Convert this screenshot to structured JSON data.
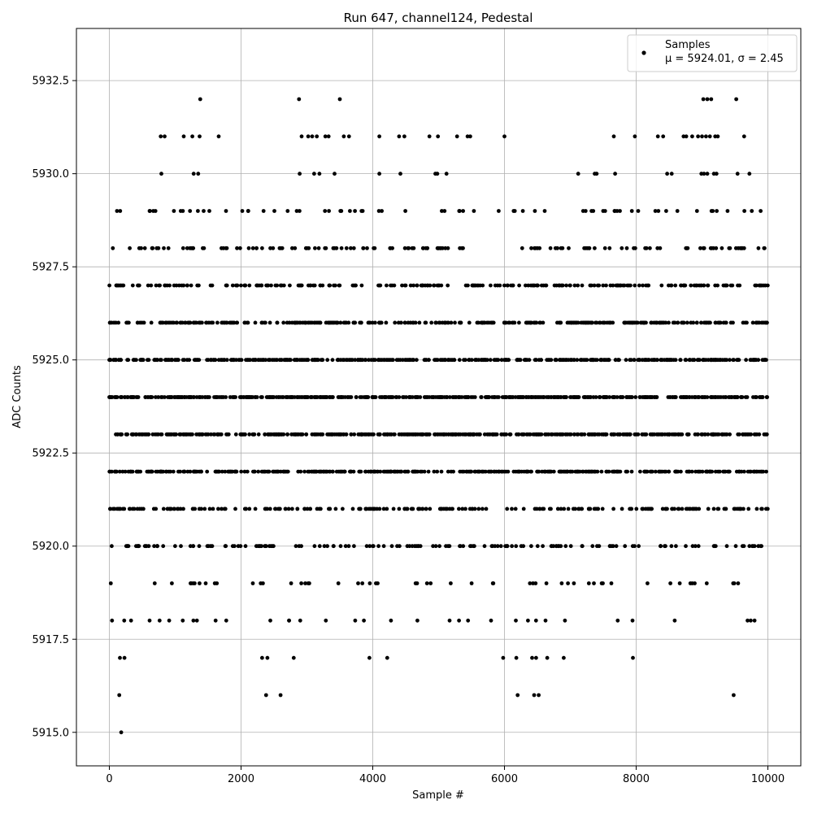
{
  "chart_data": {
    "type": "scatter",
    "title": "Run 647, channel124, Pedestal",
    "xlabel": "Sample #",
    "ylabel": "ADC Counts",
    "xlim": [
      -500,
      10500
    ],
    "ylim": [
      5914.1,
      5933.9
    ],
    "xticks": [
      0,
      2000,
      4000,
      6000,
      8000,
      10000
    ],
    "xtick_labels": [
      "0",
      "2000",
      "4000",
      "6000",
      "8000",
      "10000"
    ],
    "yticks": [
      5915.0,
      5917.5,
      5920.0,
      5922.5,
      5925.0,
      5927.5,
      5930.0,
      5932.5
    ],
    "ytick_labels": [
      "5915.0",
      "5917.5",
      "5920.0",
      "5922.5",
      "5925.0",
      "5927.5",
      "5930.0",
      "5932.5"
    ],
    "grid": true,
    "legend": {
      "position": "top-right",
      "series_label": "Samples",
      "stats_label": "μ = 5924.01, σ = 2.45"
    },
    "series": [
      {
        "name": "Samples",
        "color": "#000000",
        "x_range": [
          0,
          10000
        ],
        "mean": 5924.01,
        "sigma": 2.45,
        "outliers": [
          [
            180,
            5915
          ],
          [
            150,
            5916
          ],
          [
            2380,
            5916
          ],
          [
            2600,
            5916
          ],
          [
            6200,
            5916
          ],
          [
            6450,
            5916
          ],
          [
            6520,
            5916
          ],
          [
            9480,
            5916
          ],
          [
            160,
            5917
          ],
          [
            230,
            5917
          ],
          [
            2320,
            5917
          ],
          [
            2400,
            5917
          ],
          [
            2800,
            5917
          ],
          [
            3950,
            5917
          ],
          [
            4220,
            5917
          ],
          [
            5980,
            5917
          ],
          [
            6180,
            5917
          ],
          [
            6420,
            5917
          ],
          [
            6480,
            5917
          ],
          [
            6650,
            5917
          ],
          [
            6900,
            5917
          ],
          [
            7950,
            5917
          ],
          [
            1380,
            5932
          ],
          [
            2880,
            5932
          ],
          [
            3500,
            5932
          ],
          [
            9020,
            5932
          ],
          [
            9080,
            5932
          ],
          [
            9140,
            5932
          ],
          [
            9520,
            5932
          ],
          [
            780,
            5931
          ],
          [
            840,
            5931
          ],
          [
            1130,
            5931
          ],
          [
            1260,
            5931
          ],
          [
            1370,
            5931
          ],
          [
            1660,
            5931
          ],
          [
            2920,
            5931
          ],
          [
            3020,
            5931
          ],
          [
            3080,
            5931
          ],
          [
            3150,
            5931
          ],
          [
            3280,
            5931
          ],
          [
            3330,
            5931
          ],
          [
            3560,
            5931
          ],
          [
            3640,
            5931
          ],
          [
            4100,
            5931
          ],
          [
            4400,
            5931
          ],
          [
            4480,
            5931
          ],
          [
            4860,
            5931
          ],
          [
            4990,
            5931
          ],
          [
            5280,
            5931
          ],
          [
            5440,
            5931
          ],
          [
            5480,
            5931
          ],
          [
            6000,
            5931
          ],
          [
            7660,
            5931
          ],
          [
            7980,
            5931
          ],
          [
            8330,
            5931
          ],
          [
            8410,
            5931
          ],
          [
            8720,
            5931
          ],
          [
            8760,
            5931
          ],
          [
            8850,
            5931
          ],
          [
            8940,
            5931
          ],
          [
            9000,
            5931
          ],
          [
            9060,
            5931
          ],
          [
            9120,
            5931
          ],
          [
            9200,
            5931
          ],
          [
            9240,
            5931
          ],
          [
            9640,
            5931
          ],
          [
            790,
            5930
          ],
          [
            1280,
            5930
          ],
          [
            1350,
            5930
          ],
          [
            2890,
            5930
          ],
          [
            3110,
            5930
          ],
          [
            3190,
            5930
          ],
          [
            3420,
            5930
          ],
          [
            4100,
            5930
          ],
          [
            4420,
            5930
          ],
          [
            4950,
            5930
          ],
          [
            4980,
            5930
          ],
          [
            5120,
            5930
          ],
          [
            7120,
            5930
          ],
          [
            7370,
            5930
          ],
          [
            7400,
            5930
          ],
          [
            7680,
            5930
          ],
          [
            8470,
            5930
          ],
          [
            8540,
            5930
          ],
          [
            8990,
            5930
          ],
          [
            9030,
            5930
          ],
          [
            9080,
            5930
          ],
          [
            9180,
            5930
          ],
          [
            9220,
            5930
          ],
          [
            9540,
            5930
          ],
          [
            9720,
            5930
          ]
        ]
      }
    ]
  }
}
